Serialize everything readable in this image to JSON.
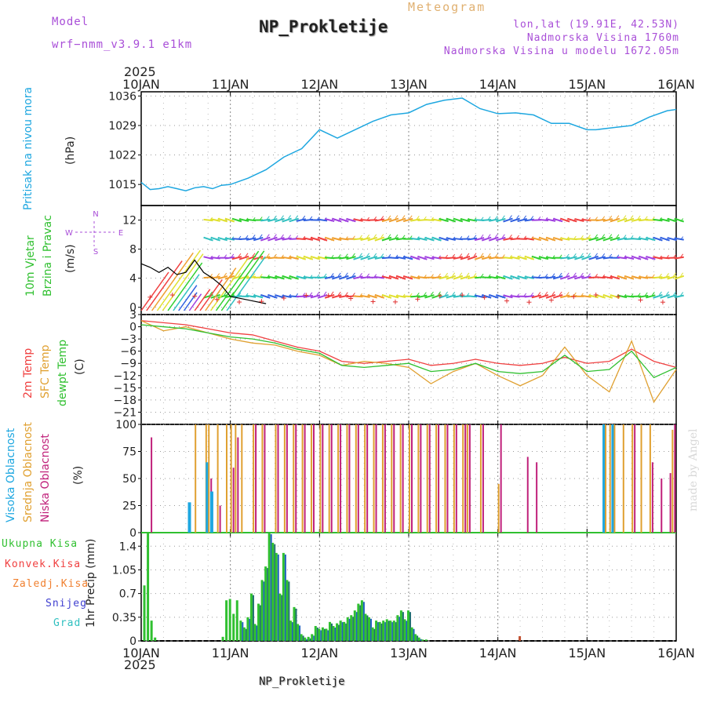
{
  "header": {
    "model_label": "Model",
    "model_name": "wrf−nmm_v3.9.1  e1km",
    "meteogram_label": "Meteogram",
    "station_name": "NP_Prokletije",
    "lonlat": "lon,lat (19.91E, 42.53N)",
    "altitude": "Nadmorska Visina 1760m",
    "model_altitude": "Nadmorska Visina u modelu 1672.05m",
    "top_year": "2025",
    "bottom_year": "2025",
    "footer_station": "NP_Prokletije",
    "credit": "made by Angel"
  },
  "colors": {
    "pressure": "#1ea7e0",
    "temp2m": "#f04040",
    "sfc_temp": "#e0a030",
    "dewpt": "#30c030",
    "cloud_high": "#1ea7e0",
    "cloud_mid": "#e0a030",
    "cloud_low": "#c0207a",
    "precip_total": "#30c030",
    "precip_conv": "#f04040",
    "precip_frozen": "#f08030",
    "precip_snow": "#4040d0",
    "precip_grad": "#30c0c0",
    "wind_speed": "#000000",
    "wind_marker": "#e03030",
    "axis_label": "#a94fd8"
  },
  "chart_data": [
    {
      "type": "line",
      "name": "pressure",
      "x_ticks": [
        "10JAN",
        "11JAN",
        "12JAN",
        "13JAN",
        "14JAN",
        "15JAN",
        "16JAN"
      ],
      "ylabel_name": "Pritisak na nivou mora",
      "ylabel_unit": "(hPa)",
      "y_ticks": [
        1015,
        1022,
        1029,
        1036
      ],
      "ylim": [
        1010,
        1037
      ],
      "x": [
        0,
        0.1,
        0.2,
        0.3,
        0.4,
        0.5,
        0.6,
        0.7,
        0.8,
        0.9,
        1.0,
        1.2,
        1.4,
        1.6,
        1.8,
        2.0,
        2.2,
        2.4,
        2.6,
        2.8,
        3.0,
        3.2,
        3.4,
        3.6,
        3.8,
        4.0,
        4.2,
        4.4,
        4.6,
        4.8,
        5.0,
        5.1,
        5.3,
        5.5,
        5.7,
        5.9,
        6.0
      ],
      "series": [
        {
          "name": "pressure",
          "values": [
            1015.5,
            1013.8,
            1014.0,
            1014.5,
            1014.0,
            1013.5,
            1014.2,
            1014.5,
            1014.0,
            1014.8,
            1015.0,
            1016.5,
            1018.5,
            1021.5,
            1023.5,
            1028.0,
            1026.0,
            1028.0,
            1030.0,
            1031.5,
            1032.0,
            1034.0,
            1035.0,
            1035.5,
            1033.0,
            1031.8,
            1032.0,
            1031.5,
            1029.5,
            1029.5,
            1028.0,
            1028.0,
            1028.5,
            1029.0,
            1031.0,
            1032.5,
            1032.8
          ]
        }
      ]
    },
    {
      "type": "line",
      "name": "wind",
      "x_ticks": [
        "10JAN",
        "11JAN",
        "12JAN",
        "13JAN",
        "14JAN",
        "15JAN",
        "16JAN"
      ],
      "ylabel_name": "10m Vjetar Brzina i Pravac",
      "ylabel_unit": "(m/s)",
      "compass": "N E W S",
      "y_ticks": [
        0,
        4,
        8,
        12
      ],
      "ylim": [
        -1,
        14
      ],
      "x": [
        0,
        0.1,
        0.2,
        0.3,
        0.4,
        0.5,
        0.6,
        0.7,
        0.8,
        0.9,
        1.0,
        1.2,
        1.4
      ],
      "series": [
        {
          "name": "speed",
          "values": [
            6.0,
            5.5,
            4.8,
            5.5,
            4.5,
            4.8,
            6.5,
            4.8,
            4.0,
            3.0,
            1.5,
            1.0,
            0.5
          ]
        }
      ],
      "barb_levels": [
        12,
        9.4,
        6.8,
        4.1,
        1.5
      ]
    },
    {
      "type": "line",
      "name": "temperature",
      "x_ticks": [
        "10JAN",
        "11JAN",
        "12JAN",
        "13JAN",
        "14JAN",
        "15JAN",
        "16JAN"
      ],
      "ylabel_names": [
        "2m Temp",
        "SFC Temp",
        "dewpt Temp"
      ],
      "ylabel_unit": "(C)",
      "y_ticks": [
        3,
        0,
        -3,
        -6,
        -9,
        -12,
        -15,
        -18,
        -21
      ],
      "ylim": [
        -24,
        3
      ],
      "x": [
        0,
        0.25,
        0.5,
        0.75,
        1.0,
        1.25,
        1.5,
        1.75,
        2.0,
        2.25,
        2.5,
        2.75,
        3.0,
        3.25,
        3.5,
        3.75,
        4.0,
        4.25,
        4.5,
        4.75,
        5.0,
        5.25,
        5.5,
        5.75,
        6.0
      ],
      "series": [
        {
          "name": "2m Temp",
          "values": [
            1.5,
            1.0,
            0.5,
            -0.5,
            -1.5,
            -2.0,
            -3.5,
            -5.0,
            -6.0,
            -8.5,
            -9.0,
            -8.5,
            -8.0,
            -9.5,
            -9.0,
            -8.0,
            -9.0,
            -9.5,
            -9.0,
            -7.5,
            -9.0,
            -8.5,
            -5.5,
            -8.5,
            -10.0
          ]
        },
        {
          "name": "SFC Temp",
          "values": [
            1.5,
            -1.0,
            0.0,
            -1.5,
            -3.0,
            -4.0,
            -4.5,
            -6.0,
            -7.0,
            -9.5,
            -8.5,
            -9.0,
            -10.0,
            -14.0,
            -11.0,
            -9.0,
            -12.0,
            -14.5,
            -12.0,
            -5.0,
            -12.0,
            -16.0,
            -3.5,
            -18.5,
            -10.5
          ]
        },
        {
          "name": "dewpt Temp",
          "values": [
            0.5,
            0.0,
            -0.5,
            -1.5,
            -2.5,
            -3.0,
            -4.0,
            -5.5,
            -6.5,
            -9.5,
            -10.0,
            -9.5,
            -9.0,
            -11.0,
            -10.5,
            -9.0,
            -11.0,
            -11.5,
            -11.0,
            -7.0,
            -11.0,
            -10.5,
            -6.0,
            -12.5,
            -10.0
          ]
        }
      ]
    },
    {
      "type": "bar",
      "name": "cloud_cover",
      "x_ticks": [
        "10JAN",
        "11JAN",
        "12JAN",
        "13JAN",
        "14JAN",
        "15JAN",
        "16JAN"
      ],
      "ylabel_names": [
        "Visoka Oblacnost",
        "Srednja Oblacnost",
        "Niska Oblacnost"
      ],
      "ylabel_unit": "(%)",
      "y_ticks": [
        0,
        25,
        50,
        75,
        100
      ],
      "ylim": [
        0,
        100
      ],
      "x": [
        0.08,
        0.25,
        0.35,
        0.45,
        0.55,
        0.6,
        0.72,
        0.75,
        0.8,
        0.85,
        0.95,
        1.0,
        1.05,
        1.12,
        1.25,
        1.35,
        1.5,
        1.6,
        1.7,
        1.8,
        1.9,
        2.0,
        2.1,
        2.2,
        2.3,
        2.4,
        2.5,
        2.6,
        2.7,
        2.8,
        2.9,
        3.0,
        3.1,
        3.2,
        3.3,
        3.4,
        3.5,
        3.6,
        3.65,
        3.8,
        4.0,
        4.2,
        4.3,
        4.4,
        4.6,
        4.8,
        5.0,
        5.2,
        5.25,
        5.3,
        5.4,
        5.5,
        5.6,
        5.7,
        5.8,
        5.9,
        5.95
      ],
      "series": [
        {
          "name": "Visoka Oblacnost",
          "values": [
            0,
            0,
            0,
            0,
            28,
            0,
            0,
            65,
            38,
            0,
            0,
            0,
            0,
            0,
            0,
            0,
            0,
            0,
            0,
            0,
            0,
            0,
            0,
            0,
            0,
            0,
            0,
            0,
            0,
            0,
            0,
            0,
            0,
            0,
            0,
            0,
            0,
            0,
            0,
            0,
            0,
            0,
            0,
            0,
            0,
            0,
            0,
            100,
            0,
            100,
            0,
            0,
            0,
            0,
            0,
            0,
            0
          ]
        },
        {
          "name": "Srednja Oblacnost",
          "values": [
            0,
            0,
            0,
            0,
            0,
            100,
            100,
            100,
            0,
            100,
            100,
            100,
            100,
            100,
            100,
            100,
            100,
            100,
            100,
            100,
            100,
            100,
            100,
            100,
            100,
            100,
            100,
            100,
            100,
            100,
            100,
            100,
            100,
            100,
            100,
            100,
            100,
            100,
            100,
            100,
            45,
            0,
            0,
            0,
            0,
            0,
            0,
            100,
            100,
            100,
            100,
            100,
            100,
            100,
            0,
            0,
            95
          ]
        },
        {
          "name": "Niska Oblacnost",
          "values": [
            88,
            0,
            0,
            0,
            0,
            0,
            0,
            50,
            0,
            25,
            0,
            60,
            88,
            0,
            100,
            100,
            100,
            100,
            100,
            100,
            100,
            100,
            100,
            100,
            100,
            100,
            100,
            100,
            100,
            100,
            100,
            100,
            100,
            100,
            100,
            100,
            100,
            100,
            100,
            100,
            100,
            0,
            70,
            65,
            0,
            0,
            0,
            0,
            0,
            0,
            0,
            100,
            0,
            65,
            50,
            55,
            100
          ]
        }
      ]
    },
    {
      "type": "bar",
      "name": "precipitation",
      "x_ticks": [
        "10JAN",
        "11JAN",
        "12JAN",
        "13JAN",
        "14JAN",
        "15JAN",
        "16JAN"
      ],
      "ylabel_names": [
        "Ukupna Kisa",
        "Konvek.Kisa",
        "Zaledj.Kisa",
        "Snijeg",
        "Grad"
      ],
      "ylabel_unit": "1hr Precip (mm)",
      "y_ticks": [
        0,
        0.35,
        0.7,
        1.05,
        1.4
      ],
      "ylim": [
        0,
        1.6
      ],
      "x": [
        0.04,
        0.08,
        0.12,
        0.16,
        0.92,
        0.96,
        1.0,
        1.04,
        1.08,
        1.12,
        1.16,
        1.2,
        1.24,
        1.28,
        1.32,
        1.36,
        1.4,
        1.44,
        1.48,
        1.52,
        1.56,
        1.6,
        1.64,
        1.68,
        1.72,
        1.76,
        1.8,
        1.84,
        1.88,
        1.92,
        1.96,
        2.0,
        2.04,
        2.08,
        2.12,
        2.16,
        2.2,
        2.24,
        2.28,
        2.32,
        2.36,
        2.4,
        2.44,
        2.48,
        2.52,
        2.56,
        2.6,
        2.64,
        2.68,
        2.72,
        2.76,
        2.8,
        2.84,
        2.88,
        2.92,
        2.96,
        3.0,
        3.04,
        3.08,
        3.12,
        3.16,
        3.2,
        4.25
      ],
      "series": [
        {
          "name": "Ukupna Kisa",
          "values": [
            0.82,
            1.6,
            0.3,
            0.05,
            0.06,
            0.6,
            0.62,
            0.4,
            0.6,
            0.3,
            0.2,
            0.35,
            0.7,
            0.25,
            0.55,
            0.9,
            1.1,
            1.6,
            1.45,
            1.3,
            0.7,
            1.3,
            0.9,
            0.3,
            0.5,
            0.25,
            0.1,
            0.05,
            0.06,
            0.1,
            0.22,
            0.18,
            0.2,
            0.18,
            0.28,
            0.22,
            0.26,
            0.3,
            0.28,
            0.35,
            0.38,
            0.45,
            0.55,
            0.6,
            0.4,
            0.35,
            0.2,
            0.3,
            0.28,
            0.3,
            0.32,
            0.3,
            0.3,
            0.38,
            0.45,
            0.32,
            0.45,
            0.2,
            0.1,
            0.05,
            0.02,
            0.02,
            0.07
          ]
        }
      ]
    }
  ]
}
